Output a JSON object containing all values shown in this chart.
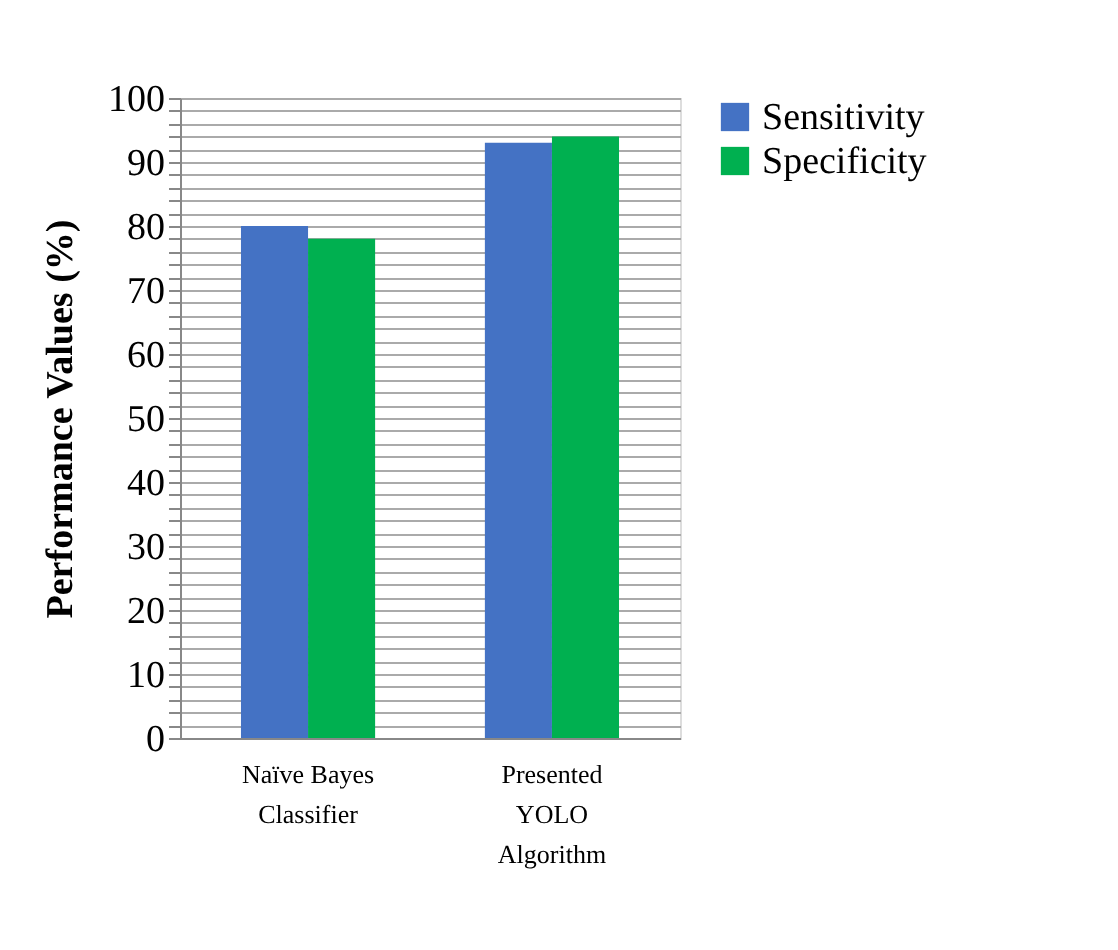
{
  "chart_data": {
    "type": "bar",
    "ylabel": "Performance Values (%)",
    "categories": [
      "Naïve Bayes Classifier",
      "Presented YOLO Algorithm"
    ],
    "series": [
      {
        "name": "Sensitivity",
        "color": "#4472c4",
        "values": [
          80,
          93
        ]
      },
      {
        "name": "Specificity",
        "color": "#00b050",
        "values": [
          78,
          94
        ]
      }
    ],
    "ylim": [
      0,
      100
    ],
    "yticks": [
      0,
      {
        "value": 2,
        "label": null
      },
      {
        "value": 4,
        "label": null
      },
      {
        "value": 6,
        "label": null
      },
      {
        "value": 8,
        "label": null
      },
      10,
      {
        "value": 12,
        "label": null
      },
      {
        "value": 14,
        "label": null
      },
      {
        "value": 16,
        "label": null
      },
      {
        "value": 18,
        "label": null
      },
      20,
      {
        "value": 22,
        "label": null
      },
      {
        "value": 24,
        "label": null
      },
      {
        "value": 26,
        "label": null
      },
      {
        "value": 28,
        "label": null
      },
      30,
      {
        "value": 32,
        "label": null
      },
      {
        "value": 34,
        "label": null
      },
      {
        "value": 36,
        "label": null
      },
      {
        "value": 38,
        "label": null
      },
      40,
      {
        "value": 42,
        "label": null
      },
      {
        "value": 44,
        "label": null
      },
      {
        "value": 46,
        "label": null
      },
      {
        "value": 48,
        "label": null
      },
      50,
      {
        "value": 52,
        "label": null
      },
      {
        "value": 54,
        "label": null
      },
      {
        "value": 56,
        "label": null
      },
      {
        "value": 58,
        "label": null
      },
      60,
      {
        "value": 62,
        "label": null
      },
      {
        "value": 64,
        "label": null
      },
      {
        "value": 66,
        "label": null
      },
      {
        "value": 68,
        "label": null
      },
      70,
      {
        "value": 72,
        "label": null
      },
      {
        "value": 74,
        "label": null
      },
      {
        "value": 76,
        "label": null
      },
      {
        "value": 78,
        "label": null
      },
      80,
      {
        "value": 82,
        "label": null
      },
      {
        "value": 84,
        "label": null
      },
      {
        "value": 86,
        "label": null
      },
      {
        "value": 88,
        "label": null
      },
      90,
      {
        "value": 92,
        "label": null
      },
      {
        "value": 94,
        "label": null
      },
      {
        "value": 96,
        "label": null
      },
      {
        "value": 98,
        "label": null
      },
      100
    ],
    "grid": true,
    "legend": "right"
  }
}
